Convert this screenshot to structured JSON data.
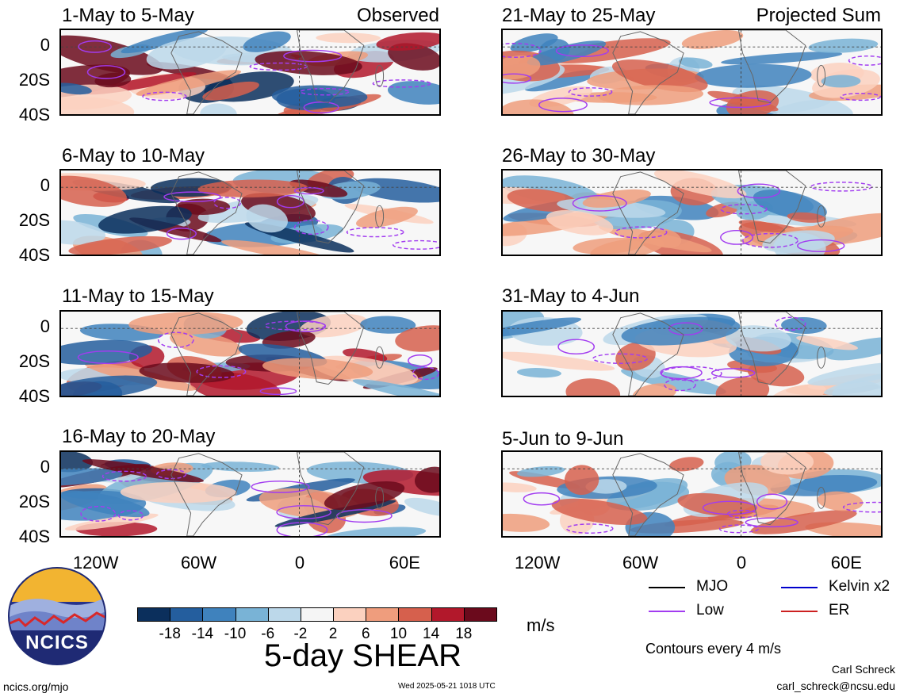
{
  "panels": [
    {
      "title": "1-May to 5-May",
      "tag": "Observed"
    },
    {
      "title": "6-May to 10-May",
      "tag": ""
    },
    {
      "title": "11-May to 15-May",
      "tag": ""
    },
    {
      "title": "16-May to 20-May",
      "tag": ""
    },
    {
      "title": "21-May to 25-May",
      "tag": "Projected Sum"
    },
    {
      "title": "26-May to 30-May",
      "tag": ""
    },
    {
      "title": "31-May to 4-Jun",
      "tag": ""
    },
    {
      "title": "5-Jun to 9-Jun",
      "tag": ""
    }
  ],
  "axes": {
    "y_ticks": [
      "0",
      "20S",
      "40S"
    ],
    "x_ticks": [
      "120W",
      "60W",
      "0",
      "60E"
    ]
  },
  "legend": {
    "items": [
      {
        "label": "MJO",
        "color": "#000000"
      },
      {
        "label": "Kelvin x2",
        "color": "#0000cc"
      },
      {
        "label": "Low",
        "color": "#a23cf0"
      },
      {
        "label": "ER",
        "color": "#cc2020"
      }
    ],
    "contour_note": "Contours every 4 m/s"
  },
  "colorbar": {
    "ticks": [
      "-18",
      "-14",
      "-10",
      "-6",
      "-2",
      "2",
      "6",
      "10",
      "14",
      "18"
    ],
    "colors": [
      "#0b2f5c",
      "#245e9e",
      "#3f82bd",
      "#79b3d6",
      "#bcd8ea",
      "#f5f5f5",
      "#fbd1bf",
      "#ef9d7d",
      "#d6604d",
      "#b2182b",
      "#6b0a1c"
    ],
    "unit": "m/s",
    "title": "5-day SHEAR"
  },
  "footer": {
    "logo_text": "NCICS",
    "url": "ncics.org/mjo",
    "timestamp": "Wed 2025-05-21 1018 UTC",
    "author": "Carl Schreck",
    "email": "carl_schreck@ncsu.edu"
  }
}
